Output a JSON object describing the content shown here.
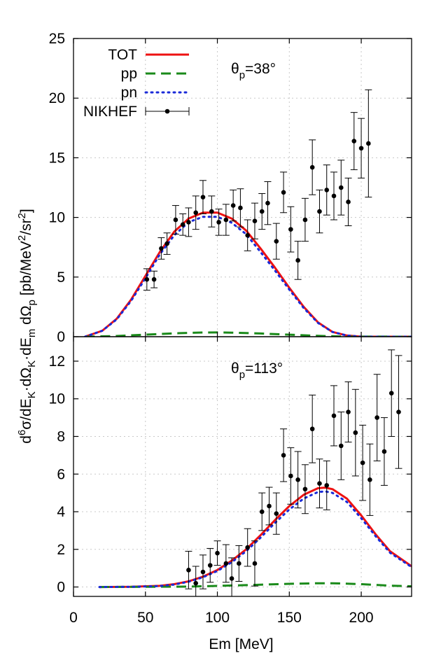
{
  "chart_data": [
    {
      "type": "line",
      "panel": "top",
      "annotation": {
        "base": "θ",
        "sub": "p",
        "rest": "=38°"
      },
      "xlim": [
        0,
        235
      ],
      "ylim": [
        0,
        25
      ],
      "x_ticks": [
        0,
        50,
        100,
        150,
        200
      ],
      "y_ticks": [
        0,
        5,
        10,
        15,
        20,
        25
      ],
      "y_tick_labels": [
        "0",
        "5",
        "10",
        "15",
        "20",
        "25"
      ],
      "grid": true,
      "legend": {
        "placement": "top-left",
        "entries": [
          {
            "label": "TOT",
            "series": "TOT"
          },
          {
            "label": "pp",
            "series": "pp"
          },
          {
            "label": "pn",
            "series": "pn"
          },
          {
            "label": "NIKHEF",
            "series": "NIKHEF"
          }
        ]
      },
      "series": [
        {
          "name": "TOT",
          "style": "solid",
          "color": "#ee1111",
          "x": [
            8,
            20,
            30,
            40,
            50,
            60,
            70,
            80,
            90,
            100,
            110,
            120,
            130,
            140,
            150,
            160,
            170,
            180,
            190,
            200,
            235
          ],
          "y": [
            0,
            0.5,
            1.5,
            3.1,
            5.1,
            7.1,
            8.8,
            9.9,
            10.4,
            10.4,
            9.9,
            8.9,
            7.4,
            5.8,
            4.1,
            2.5,
            1.2,
            0.4,
            0.1,
            0,
            0
          ]
        },
        {
          "name": "pp",
          "style": "dashed",
          "color": "#1a8a1a",
          "x": [
            8,
            30,
            50,
            70,
            90,
            100,
            110,
            130,
            150,
            170,
            190,
            235
          ],
          "y": [
            0,
            0.06,
            0.17,
            0.28,
            0.35,
            0.36,
            0.34,
            0.27,
            0.17,
            0.07,
            0.01,
            0
          ]
        },
        {
          "name": "pn",
          "style": "dotted",
          "color": "#1a2ad8",
          "x": [
            8,
            20,
            30,
            40,
            50,
            60,
            70,
            80,
            90,
            100,
            110,
            120,
            130,
            140,
            150,
            160,
            170,
            180,
            190,
            200,
            235
          ],
          "y": [
            0,
            0.5,
            1.45,
            3.0,
            4.9,
            6.9,
            8.5,
            9.6,
            10.05,
            10.05,
            9.55,
            8.6,
            7.1,
            5.55,
            3.95,
            2.4,
            1.15,
            0.4,
            0.1,
            0,
            0
          ]
        },
        {
          "name": "NIKHEF",
          "style": "points",
          "color": "#000000",
          "points": [
            [
              51,
              4.8,
              0.9
            ],
            [
              56,
              4.8,
              0.7
            ],
            [
              61,
              7.4,
              0.9
            ],
            [
              65,
              7.8,
              0.9
            ],
            [
              71,
              9.8,
              1.2
            ],
            [
              76,
              9.4,
              0.9
            ],
            [
              80,
              9.6,
              1.2
            ],
            [
              85,
              10.4,
              1.4
            ],
            [
              90,
              11.7,
              1.4
            ],
            [
              96,
              10.5,
              1.3
            ],
            [
              101,
              9.6,
              1.1
            ],
            [
              106,
              9.8,
              1.3
            ],
            [
              111,
              11.0,
              1.3
            ],
            [
              116,
              10.8,
              1.6
            ],
            [
              121,
              8.5,
              1.3
            ],
            [
              126,
              9.7,
              1.5
            ],
            [
              131,
              10.5,
              1.5
            ],
            [
              135,
              11.2,
              1.8
            ],
            [
              141,
              8.0,
              1.5
            ],
            [
              146,
              12.1,
              1.7
            ],
            [
              151,
              9.0,
              1.9
            ],
            [
              156,
              6.4,
              1.6
            ],
            [
              161,
              9.8,
              1.8
            ],
            [
              166,
              14.2,
              2.3
            ],
            [
              171,
              10.5,
              1.8
            ],
            [
              176,
              12.3,
              2.1
            ],
            [
              181,
              11.8,
              2.0
            ],
            [
              186,
              12.5,
              2.3
            ],
            [
              191,
              11.3,
              2.0
            ],
            [
              195,
              16.4,
              2.4
            ],
            [
              200,
              15.8,
              2.5
            ],
            [
              205,
              16.2,
              4.5
            ]
          ]
        }
      ]
    },
    {
      "type": "line",
      "panel": "bottom",
      "annotation": {
        "base": "θ",
        "sub": "p",
        "rest": "=113°"
      },
      "xlim": [
        0,
        235
      ],
      "ylim": [
        -0.5,
        13.3
      ],
      "x_ticks": [
        0,
        50,
        100,
        150,
        200
      ],
      "x_tick_labels": [
        "0",
        "50",
        "100",
        "150",
        "200"
      ],
      "y_ticks": [
        0,
        2,
        4,
        6,
        8,
        10,
        12
      ],
      "y_tick_labels": [
        "0",
        "2",
        "4",
        "6",
        "8",
        "10",
        "12"
      ],
      "grid": true,
      "xlabel": "Em [MeV]",
      "series": [
        {
          "name": "TOT",
          "style": "solid",
          "color": "#ee1111",
          "x": [
            18,
            40,
            60,
            70,
            80,
            90,
            100,
            110,
            120,
            130,
            140,
            150,
            160,
            170,
            175,
            180,
            190,
            200,
            210,
            220,
            235
          ],
          "y": [
            0,
            0.01,
            0.06,
            0.15,
            0.3,
            0.55,
            0.9,
            1.4,
            2.0,
            2.75,
            3.55,
            4.3,
            4.9,
            5.25,
            5.28,
            5.2,
            4.7,
            3.8,
            2.8,
            1.9,
            1.1
          ]
        },
        {
          "name": "pp",
          "style": "dashed",
          "color": "#1a8a1a",
          "x": [
            18,
            80,
            120,
            150,
            170,
            180,
            200,
            220,
            235
          ],
          "y": [
            0,
            0.02,
            0.1,
            0.17,
            0.2,
            0.2,
            0.15,
            0.07,
            0.04
          ]
        },
        {
          "name": "pn",
          "style": "dotted",
          "color": "#1a2ad8",
          "x": [
            18,
            40,
            60,
            70,
            80,
            90,
            100,
            110,
            120,
            130,
            140,
            150,
            160,
            170,
            175,
            180,
            190,
            200,
            210,
            220,
            235
          ],
          "y": [
            0,
            0.01,
            0.05,
            0.13,
            0.28,
            0.52,
            0.85,
            1.32,
            1.9,
            2.62,
            3.4,
            4.12,
            4.7,
            5.05,
            5.08,
            5.0,
            4.52,
            3.65,
            2.7,
            1.82,
            1.06
          ]
        },
        {
          "name": "NIKHEF",
          "style": "points",
          "color": "#000000",
          "points": [
            [
              80,
              0.9,
              1.0
            ],
            [
              85,
              0.2,
              0.9
            ],
            [
              90,
              0.8,
              0.9
            ],
            [
              95,
              1.15,
              0.9
            ],
            [
              100,
              1.8,
              0.65
            ],
            [
              106,
              1.25,
              1.0
            ],
            [
              110,
              0.45,
              1.1
            ],
            [
              115,
              1.25,
              0.95
            ],
            [
              121,
              2.1,
              1.0
            ],
            [
              126,
              1.25,
              1.2
            ],
            [
              131,
              4.0,
              1.0
            ],
            [
              136,
              4.3,
              1.0
            ],
            [
              141,
              3.9,
              1.1
            ],
            [
              146,
              7.0,
              1.4
            ],
            [
              151,
              5.9,
              1.5
            ],
            [
              156,
              5.7,
              1.5
            ],
            [
              161,
              5.2,
              1.3
            ],
            [
              166,
              8.4,
              1.8
            ],
            [
              171,
              5.5,
              1.3
            ],
            [
              176,
              5.4,
              1.3
            ],
            [
              181,
              9.1,
              1.6
            ],
            [
              186,
              7.5,
              1.8
            ],
            [
              191,
              9.3,
              1.6
            ],
            [
              196,
              8.2,
              2.3
            ],
            [
              201,
              6.6,
              2.0
            ],
            [
              206,
              5.7,
              1.9
            ],
            [
              211,
              9.0,
              2.3
            ],
            [
              216,
              7.2,
              1.8
            ],
            [
              221,
              10.3,
              2.3
            ],
            [
              226,
              9.3,
              3.0
            ]
          ]
        }
      ]
    }
  ],
  "shared": {
    "ylabel": {
      "p1": "d",
      "sup1": "6",
      "p2": "σ/dE",
      "sub1": "K",
      "p3": "·dΩ",
      "sub2": "K",
      "p4": "·dE",
      "sub3": "m",
      "p5": " dΩ",
      "sub4": "p",
      "p6": " [pb/MeV",
      "sup2": "2",
      "p7": "/sr",
      "sup3": "2",
      "p8": "]"
    }
  }
}
